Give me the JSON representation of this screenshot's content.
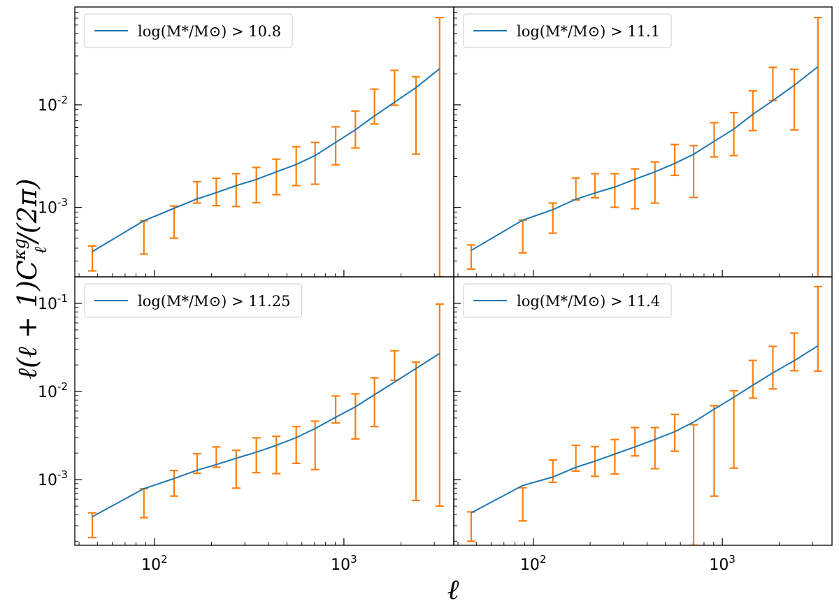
{
  "figure": {
    "xlabel": "ℓ",
    "ylabel": "ℓ(ℓ + 1)C",
    "ylabel_sub": "ℓ",
    "ylabel_sup": "κg",
    "ylabel_tail": "/(2π)"
  },
  "colors": {
    "model": "#1f77b4",
    "data": "#ff7f0e"
  },
  "chart_data": [
    {
      "type": "line",
      "panel": "top-left",
      "legend": "log(M*/M⊙) > 10.8",
      "legend_loc": "upper-left",
      "xscale": "log",
      "yscale": "log",
      "xlim": [
        38,
        3800
      ],
      "ylim": [
        0.00021,
        0.09
      ],
      "xticks": [
        {
          "base": "10",
          "exp": "2",
          "value": 100
        },
        {
          "base": "10",
          "exp": "3",
          "value": 1000
        }
      ],
      "yticks": [
        {
          "base": "10",
          "exp": "-3",
          "value": 0.001
        },
        {
          "base": "10",
          "exp": "-2",
          "value": 0.01
        }
      ],
      "model": {
        "x": [
          47,
          88,
          127,
          168,
          212,
          270,
          345,
          440,
          560,
          705,
          905,
          1150,
          1450,
          1850,
          2400,
          3200
        ],
        "y": [
          0.00037,
          0.00074,
          0.00098,
          0.00121,
          0.00139,
          0.00163,
          0.00187,
          0.00222,
          0.00262,
          0.0032,
          0.0043,
          0.0057,
          0.0078,
          0.0106,
          0.0147,
          0.0225
        ]
      },
      "data": {
        "x": [
          47,
          88,
          127,
          168,
          212,
          270,
          345,
          440,
          560,
          705,
          905,
          1150,
          1450,
          1850,
          2400,
          3200
        ],
        "low": [
          0.00024,
          0.00035,
          0.0005,
          0.0011,
          0.00104,
          0.00102,
          0.00111,
          0.00133,
          0.00163,
          0.00168,
          0.0026,
          0.0038,
          0.0065,
          0.0099,
          0.0033,
          0.00021
        ],
        "high": [
          0.00042,
          0.00074,
          0.00103,
          0.00178,
          0.00192,
          0.00213,
          0.00245,
          0.00295,
          0.0039,
          0.0043,
          0.0061,
          0.0087,
          0.0142,
          0.0217,
          0.0188,
          0.071
        ]
      }
    },
    {
      "type": "line",
      "panel": "top-right",
      "legend": "log(M*/M⊙) > 11.1",
      "legend_loc": "upper-left",
      "xscale": "log",
      "yscale": "log",
      "xlim": [
        38,
        3800
      ],
      "ylim": [
        0.00021,
        0.09
      ],
      "xticks": [
        {
          "base": "10",
          "exp": "2",
          "value": 100
        },
        {
          "base": "10",
          "exp": "3",
          "value": 1000
        }
      ],
      "yticks": [
        {
          "base": "10",
          "exp": "-3",
          "value": 0.001
        },
        {
          "base": "10",
          "exp": "-2",
          "value": 0.01
        }
      ],
      "model": {
        "x": [
          47,
          88,
          127,
          168,
          212,
          270,
          345,
          440,
          560,
          705,
          905,
          1150,
          1450,
          1850,
          2400,
          3200
        ],
        "y": [
          0.00038,
          0.00075,
          0.00095,
          0.0012,
          0.00138,
          0.00158,
          0.00188,
          0.00222,
          0.00268,
          0.0033,
          0.0044,
          0.0058,
          0.0081,
          0.011,
          0.0155,
          0.0235
        ]
      },
      "data": {
        "x": [
          47,
          88,
          127,
          168,
          212,
          270,
          345,
          440,
          560,
          705,
          905,
          1150,
          1450,
          1850,
          2400,
          3200
        ],
        "low": [
          0.00025,
          0.00036,
          0.00056,
          0.00118,
          0.00124,
          0.001,
          0.00097,
          0.0011,
          0.00205,
          0.00125,
          0.0031,
          0.0032,
          0.0056,
          0.011,
          0.0057,
          0.00021
        ],
        "high": [
          0.00043,
          0.00075,
          0.0011,
          0.00193,
          0.00213,
          0.00213,
          0.00237,
          0.00277,
          0.0041,
          0.004,
          0.0067,
          0.0084,
          0.0137,
          0.0232,
          0.0222,
          0.071
        ]
      }
    },
    {
      "type": "line",
      "panel": "bottom-left",
      "legend": "log(M*/M⊙) > 11.25",
      "legend_loc": "upper-left",
      "xscale": "log",
      "yscale": "log",
      "xlim": [
        38,
        3800
      ],
      "ylim": [
        0.00018,
        0.2
      ],
      "xticks": [
        {
          "base": "10",
          "exp": "2",
          "value": 100
        },
        {
          "base": "10",
          "exp": "3",
          "value": 1000
        }
      ],
      "yticks": [
        {
          "base": "10",
          "exp": "-3",
          "value": 0.001
        },
        {
          "base": "10",
          "exp": "-2",
          "value": 0.01
        },
        {
          "base": "10",
          "exp": "-1",
          "value": 0.1
        }
      ],
      "model": {
        "x": [
          47,
          88,
          127,
          168,
          212,
          270,
          345,
          440,
          560,
          705,
          905,
          1150,
          1450,
          1850,
          2400,
          3200
        ],
        "y": [
          0.00038,
          0.00079,
          0.00103,
          0.00128,
          0.00148,
          0.00175,
          0.00205,
          0.00245,
          0.003,
          0.0038,
          0.0051,
          0.0067,
          0.0092,
          0.0128,
          0.0182,
          0.027
        ]
      },
      "data": {
        "x": [
          47,
          88,
          127,
          168,
          212,
          270,
          345,
          440,
          560,
          705,
          905,
          1150,
          1450,
          1850,
          2400,
          3200
        ],
        "low": [
          0.00022,
          0.00037,
          0.00065,
          0.00118,
          0.00138,
          0.0008,
          0.0012,
          0.00117,
          0.00153,
          0.0013,
          0.0044,
          0.0029,
          0.004,
          0.0134,
          0.00058,
          0.0005
        ],
        "high": [
          0.00042,
          0.00079,
          0.00127,
          0.00197,
          0.00235,
          0.00215,
          0.00298,
          0.0031,
          0.004,
          0.0046,
          0.0089,
          0.0094,
          0.0143,
          0.029,
          0.0215,
          0.098
        ]
      }
    },
    {
      "type": "line",
      "panel": "bottom-right",
      "legend": "log(M*/M⊙) > 11.4",
      "legend_loc": "upper-left",
      "xscale": "log",
      "yscale": "log",
      "xlim": [
        38,
        3800
      ],
      "ylim": [
        0.00018,
        0.2
      ],
      "xticks": [
        {
          "base": "10",
          "exp": "2",
          "value": 100
        },
        {
          "base": "10",
          "exp": "3",
          "value": 1000
        }
      ],
      "yticks": [
        {
          "base": "10",
          "exp": "-3",
          "value": 0.001
        },
        {
          "base": "10",
          "exp": "-2",
          "value": 0.01
        },
        {
          "base": "10",
          "exp": "-1",
          "value": 0.1
        }
      ],
      "model": {
        "x": [
          47,
          88,
          127,
          168,
          212,
          270,
          345,
          440,
          560,
          705,
          905,
          1150,
          1450,
          1850,
          2400,
          3200
        ],
        "y": [
          0.00042,
          0.00086,
          0.00107,
          0.00138,
          0.00162,
          0.00195,
          0.00235,
          0.00286,
          0.0035,
          0.0045,
          0.0063,
          0.0086,
          0.0118,
          0.0163,
          0.0224,
          0.033
        ]
      },
      "data": {
        "x": [
          47,
          88,
          127,
          168,
          212,
          270,
          345,
          440,
          560,
          705,
          905,
          1150,
          1450,
          1850,
          2400,
          3200
        ],
        "low": [
          0.0002,
          0.00034,
          0.00093,
          0.00125,
          0.00109,
          0.00116,
          0.00186,
          0.00133,
          0.0021,
          0.00018,
          0.00065,
          0.00135,
          0.0084,
          0.0107,
          0.0172,
          0.017
        ],
        "high": [
          0.00043,
          0.00081,
          0.00167,
          0.00245,
          0.00237,
          0.00285,
          0.0039,
          0.0039,
          0.0055,
          0.0042,
          0.0069,
          0.0102,
          0.0225,
          0.0325,
          0.046,
          0.155
        ]
      }
    }
  ]
}
